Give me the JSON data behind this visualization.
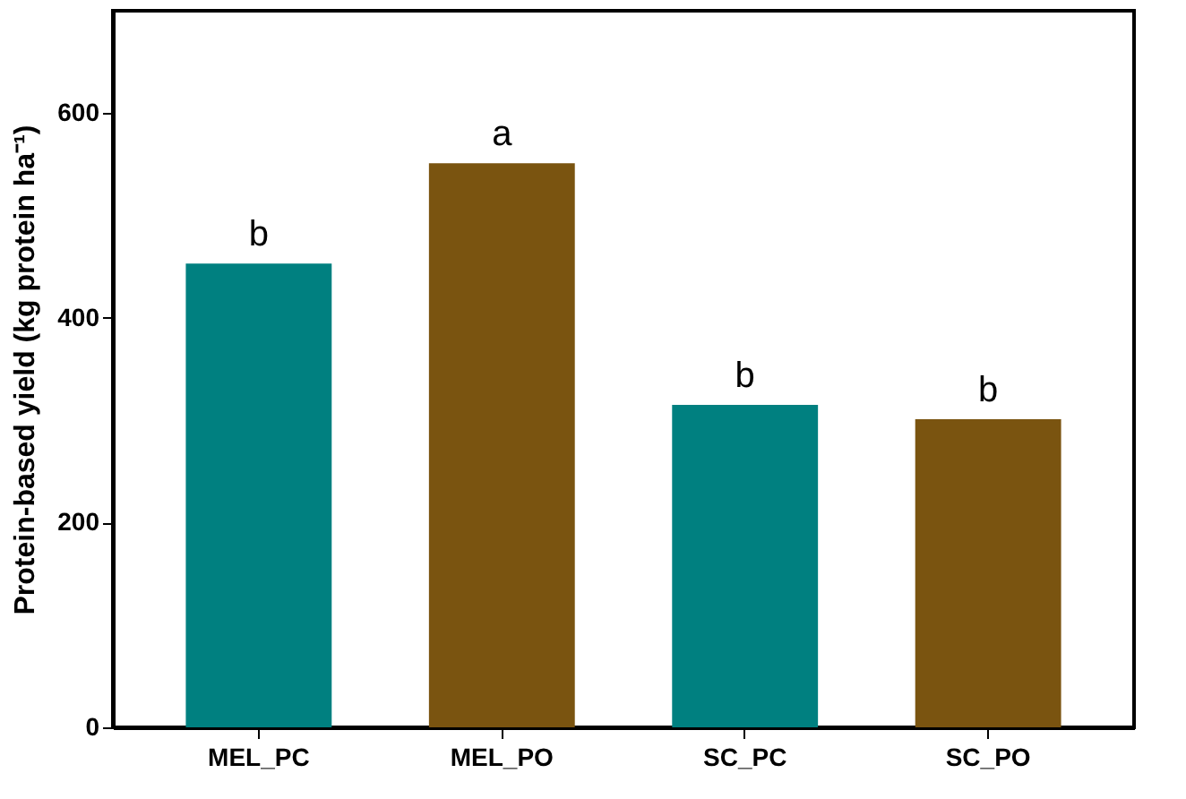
{
  "chart_data": {
    "type": "bar",
    "categories": [
      "MEL_PC",
      "MEL_PO",
      "SC_PC",
      "SC_PO"
    ],
    "values": [
      453,
      551,
      315,
      301
    ],
    "colors": [
      "#008080",
      "#7a5410",
      "#008080",
      "#7a5410"
    ],
    "ylabel": "Protein-based yield (kg protein ha⁻¹)",
    "ylim": [
      0,
      700
    ],
    "yticks": [
      0,
      200,
      400,
      600
    ],
    "grid": false,
    "annotations": [
      {
        "text": "b",
        "x": "MEL_PC",
        "y": 453
      },
      {
        "text": "a",
        "x": "MEL_PO",
        "y": 551
      },
      {
        "text": "b",
        "x": "SC_PC",
        "y": 315
      },
      {
        "text": "b",
        "x": "SC_PO",
        "y": 301
      }
    ]
  }
}
